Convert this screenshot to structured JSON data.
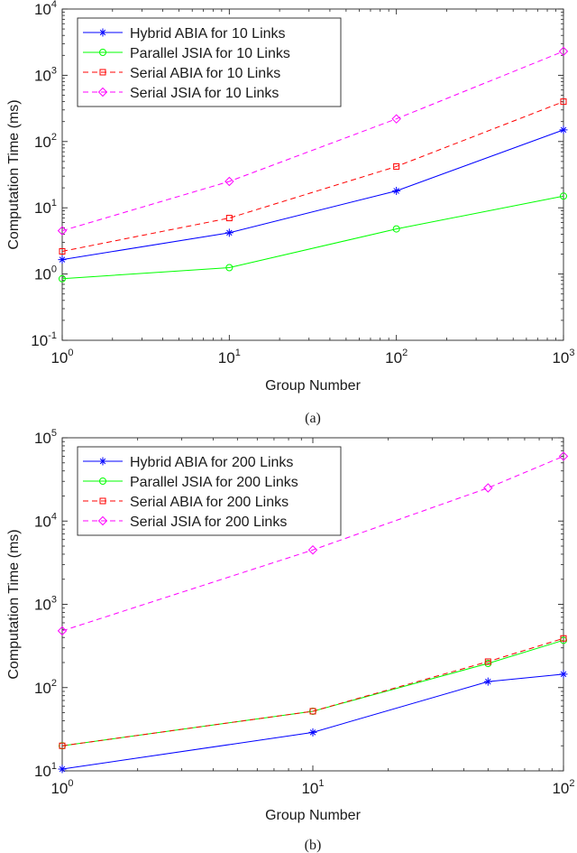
{
  "chart_data": [
    {
      "type": "line",
      "title": "",
      "caption": "(a)",
      "xlabel": "Group Number",
      "ylabel": "Computation Time (ms)",
      "xscale": "log",
      "yscale": "log",
      "xlim": [
        1,
        1000
      ],
      "ylim": [
        0.1,
        10000
      ],
      "xticks": [
        {
          "base": "10",
          "exp": "0",
          "value": 1
        },
        {
          "base": "10",
          "exp": "1",
          "value": 10
        },
        {
          "base": "10",
          "exp": "2",
          "value": 100
        },
        {
          "base": "10",
          "exp": "3",
          "value": 1000
        }
      ],
      "yticks": [
        {
          "base": "10",
          "exp": "-1",
          "value": 0.1
        },
        {
          "base": "10",
          "exp": "0",
          "value": 1
        },
        {
          "base": "10",
          "exp": "1",
          "value": 10
        },
        {
          "base": "10",
          "exp": "2",
          "value": 100
        },
        {
          "base": "10",
          "exp": "3",
          "value": 1000
        },
        {
          "base": "10",
          "exp": "4",
          "value": 10000
        }
      ],
      "legend_position": "top-left",
      "x": [
        1,
        10,
        100,
        1000
      ],
      "series": [
        {
          "name": "Hybrid ABIA for 10 Links",
          "color": "#0000ff",
          "marker": "asterisk",
          "dash": "solid",
          "values": [
            1.65,
            4.2,
            18,
            150
          ]
        },
        {
          "name": "Parallel JSIA for 10 Links",
          "color": "#00ff00",
          "marker": "circle",
          "dash": "solid",
          "values": [
            0.85,
            1.25,
            4.8,
            15
          ]
        },
        {
          "name": "Serial ABIA for 10 Links",
          "color": "#ff0000",
          "marker": "square",
          "dash": "dashed",
          "values": [
            2.2,
            7,
            42,
            400
          ]
        },
        {
          "name": "Serial JSIA for 10 Links",
          "color": "#ff00ff",
          "marker": "diamond",
          "dash": "dashed",
          "values": [
            4.5,
            25,
            220,
            2300
          ]
        }
      ]
    },
    {
      "type": "line",
      "title": "",
      "caption": "(b)",
      "xlabel": "Group Number",
      "ylabel": "Computation Time (ms)",
      "xscale": "log",
      "yscale": "log",
      "xlim": [
        1,
        100
      ],
      "ylim": [
        10,
        100000
      ],
      "xticks": [
        {
          "base": "10",
          "exp": "0",
          "value": 1
        },
        {
          "base": "10",
          "exp": "1",
          "value": 10
        },
        {
          "base": "10",
          "exp": "2",
          "value": 100
        }
      ],
      "yticks": [
        {
          "base": "10",
          "exp": "1",
          "value": 10
        },
        {
          "base": "10",
          "exp": "2",
          "value": 100
        },
        {
          "base": "10",
          "exp": "3",
          "value": 1000
        },
        {
          "base": "10",
          "exp": "4",
          "value": 10000
        },
        {
          "base": "10",
          "exp": "5",
          "value": 100000
        }
      ],
      "legend_position": "top-left",
      "x": [
        1,
        10,
        50,
        100
      ],
      "series": [
        {
          "name": "Hybrid ABIA for 200 Links",
          "color": "#0000ff",
          "marker": "asterisk",
          "dash": "solid",
          "values": [
            10.5,
            29,
            118,
            145
          ]
        },
        {
          "name": "Parallel JSIA for 200 Links",
          "color": "#00ff00",
          "marker": "circle",
          "dash": "solid",
          "values": [
            20,
            52,
            195,
            370
          ]
        },
        {
          "name": "Serial ABIA for 200 Links",
          "color": "#ff0000",
          "marker": "square",
          "dash": "dashed",
          "values": [
            20,
            52,
            205,
            390
          ]
        },
        {
          "name": "Serial JSIA for 200 Links",
          "color": "#ff00ff",
          "marker": "diamond",
          "dash": "dashed",
          "values": [
            480,
            4500,
            25000,
            60000
          ]
        }
      ]
    }
  ]
}
